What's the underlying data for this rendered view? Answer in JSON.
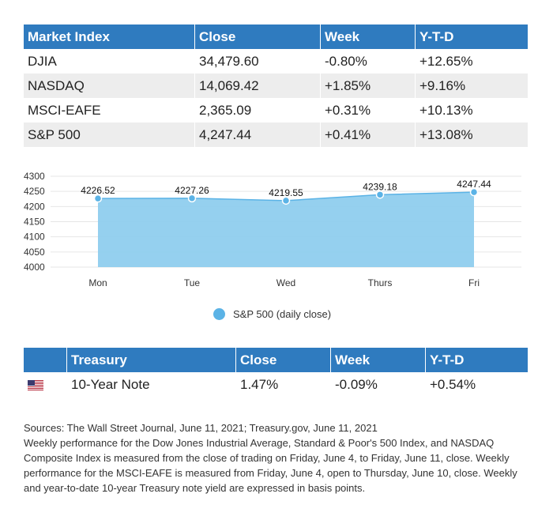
{
  "market": {
    "headers": [
      "Market Index",
      "Close",
      "Week",
      "Y-T-D"
    ],
    "rows": [
      [
        "DJIA",
        "34,479.60",
        "-0.80%",
        "+12.65%"
      ],
      [
        "NASDAQ",
        "14,069.42",
        "+1.85%",
        "+9.16%"
      ],
      [
        "MSCI-EAFE",
        "2,365.09",
        "+0.31%",
        "+10.13%"
      ],
      [
        "S&P 500",
        "4,247.44",
        "+0.41%",
        "+13.08%"
      ]
    ]
  },
  "chart_data": {
    "type": "area",
    "categories": [
      "Mon",
      "Tue",
      "Wed",
      "Thurs",
      "Fri"
    ],
    "series": [
      {
        "name": "S&P 500 (daily close)",
        "values": [
          4226.52,
          4227.26,
          4219.55,
          4239.18,
          4247.44
        ]
      }
    ],
    "data_labels": [
      "4226.52",
      "4227.26",
      "4219.55",
      "4239.18",
      "4247.44"
    ],
    "yticks": [
      "4300",
      "4250",
      "4200",
      "4150",
      "4100",
      "4050",
      "4000"
    ],
    "ylim": [
      4000,
      4300
    ],
    "grid": true,
    "legend_position": "bottom-center",
    "color": "#5bb3e6"
  },
  "legend": {
    "label": "S&P 500 (daily close)"
  },
  "treasury": {
    "headers": [
      "",
      "Treasury",
      "Close",
      "Week",
      "Y-T-D"
    ],
    "rows": [
      {
        "flag_icon": "us-flag-icon",
        "name": "10-Year Note",
        "close": "1.47%",
        "week": "-0.09%",
        "ytd": "+0.54%"
      }
    ]
  },
  "notes": {
    "sources": "Sources: The Wall Street Journal, June 11, 2021; Treasury.gov, June 11, 2021",
    "body": "Weekly performance for the Dow Jones Industrial Average, Standard & Poor's 500 Index, and NASDAQ Composite Index is measured from the close of trading on Friday, June 4, to Friday, June 11, close. Weekly performance for the MSCI-EAFE is measured from Friday, June 4, open to Thursday, June 10, close. Weekly and year-to-date 10-year Treasury note yield are expressed in basis points."
  }
}
